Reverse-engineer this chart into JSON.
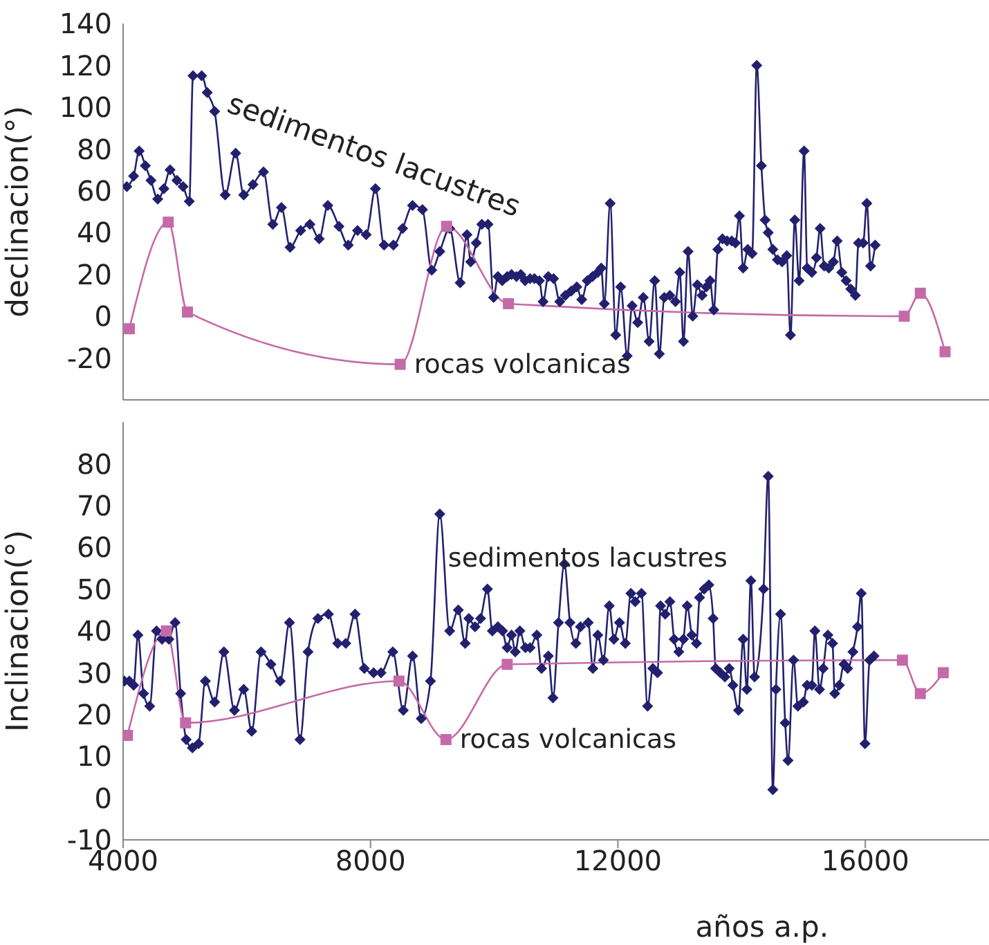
{
  "chart_data": [
    {
      "type": "line",
      "ylabel": "declinacion(°)",
      "xlim": [
        4000,
        18000
      ],
      "xticks": [
        4000,
        8000,
        12000,
        16000
      ],
      "ylim": [
        -40,
        140
      ],
      "yticks": [
        -20,
        0,
        20,
        40,
        60,
        80,
        100,
        120,
        140
      ],
      "tick_labels": "y",
      "series": [
        {
          "name": "sedimentos lacustres",
          "color": "#22206e",
          "marker": "diamond",
          "x": [
            4060,
            4170,
            4260,
            4360,
            4450,
            4560,
            4660,
            4760,
            4870,
            4970,
            5070,
            5130,
            5270,
            5360,
            5480,
            5650,
            5820,
            5950,
            6100,
            6270,
            6420,
            6560,
            6700,
            6870,
            7020,
            7170,
            7310,
            7490,
            7640,
            7790,
            7930,
            8080,
            8220,
            8370,
            8520,
            8680,
            8840,
            8990,
            9120,
            9280,
            9450,
            9560,
            9620,
            9710,
            9800,
            9900,
            9990,
            10060,
            10130,
            10210,
            10280,
            10360,
            10430,
            10500,
            10580,
            10650,
            10730,
            10790,
            10875,
            10960,
            11060,
            11150,
            11245,
            11335,
            11415,
            11505,
            11590,
            11675,
            11730,
            11780,
            11875,
            11965,
            12045,
            12150,
            12230,
            12320,
            12410,
            12505,
            12595,
            12670,
            12750,
            12840,
            12930,
            13000,
            13060,
            13135,
            13210,
            13285,
            13360,
            13430,
            13490,
            13550,
            13615,
            13690,
            13765,
            13840,
            13900,
            13965,
            14025,
            14100,
            14170,
            14245,
            14320,
            14380,
            14430,
            14505,
            14580,
            14655,
            14730,
            14790,
            14860,
            14930,
            15010,
            15060,
            15135,
            15210,
            15270,
            15335,
            15410,
            15485,
            15545,
            15620,
            15690,
            15765,
            15840,
            15890,
            15965,
            16025,
            16085,
            16160
          ],
          "values": [
            62,
            67,
            79,
            72,
            65,
            56,
            61,
            70,
            65,
            62,
            55,
            115,
            115,
            107,
            98,
            58,
            78,
            58,
            63,
            69,
            44,
            52,
            33,
            41,
            44,
            37,
            53,
            43,
            34,
            41,
            39,
            61,
            34,
            34,
            42,
            53,
            51,
            22,
            31,
            42,
            16,
            39,
            26,
            35,
            44,
            44,
            9,
            19,
            17,
            19,
            20,
            19,
            20,
            17,
            18,
            18,
            17,
            7,
            19,
            18,
            7,
            10,
            12,
            14,
            8,
            17,
            19,
            21,
            23,
            6,
            54,
            -9,
            14,
            -19,
            5,
            -3,
            9,
            -12,
            17,
            -18,
            9,
            10,
            7,
            21,
            -12,
            31,
            0,
            15,
            10,
            14,
            17,
            3,
            32,
            37,
            36,
            36,
            35,
            48,
            23,
            32,
            30,
            120,
            72,
            46,
            40,
            32,
            27,
            26,
            29,
            -9,
            46,
            17,
            79,
            23,
            21,
            28,
            42,
            24,
            23,
            26,
            36,
            21,
            17,
            13,
            10,
            35,
            35,
            54,
            24,
            34
          ]
        },
        {
          "name": "rocas volcanicas",
          "color": "#c56aa8",
          "marker": "square",
          "x": [
            4100,
            4730,
            5040,
            8480,
            9230,
            10230,
            16630,
            16890,
            17290
          ],
          "values": [
            -6,
            45,
            2,
            -23,
            43,
            6,
            0,
            11,
            -17
          ]
        }
      ]
    },
    {
      "type": "line",
      "ylabel": "Inclinacion(°)",
      "xlabel": "años a.p.",
      "xlim": [
        4000,
        18000
      ],
      "xticks": [
        4000,
        8000,
        12000,
        16000
      ],
      "ylim": [
        -10,
        90
      ],
      "yticks": [
        -10,
        0,
        10,
        20,
        30,
        40,
        50,
        60,
        70,
        80
      ],
      "series": [
        {
          "name": "sedimentos lacustres",
          "color": "#22206e",
          "marker": "diamond",
          "x": [
            4020,
            4100,
            4170,
            4240,
            4330,
            4430,
            4540,
            4630,
            4740,
            4840,
            4930,
            5020,
            5120,
            5220,
            5330,
            5480,
            5630,
            5800,
            5950,
            6080,
            6230,
            6390,
            6540,
            6690,
            6860,
            6990,
            7150,
            7320,
            7470,
            7600,
            7750,
            7900,
            8050,
            8170,
            8360,
            8530,
            8680,
            8820,
            8970,
            9120,
            9280,
            9420,
            9530,
            9590,
            9690,
            9780,
            9890,
            9970,
            10060,
            10135,
            10210,
            10280,
            10340,
            10415,
            10505,
            10580,
            10690,
            10765,
            10875,
            10950,
            11040,
            11135,
            11225,
            11320,
            11395,
            11520,
            11595,
            11675,
            11765,
            11860,
            11935,
            12025,
            12120,
            12210,
            12280,
            12380,
            12480,
            12565,
            12640,
            12690,
            12765,
            12840,
            12910,
            12985,
            13060,
            13120,
            13195,
            13270,
            13320,
            13395,
            13470,
            13540,
            13580,
            13655,
            13730,
            13800,
            13860,
            13950,
            14025,
            14085,
            14150,
            14210,
            14355,
            14430,
            14505,
            14555,
            14630,
            14705,
            14750,
            14840,
            14910,
            15000,
            15060,
            15135,
            15185,
            15260,
            15320,
            15395,
            15470,
            15505,
            15580,
            15655,
            15715,
            15800,
            15875,
            15935,
            15995,
            16070,
            16140
          ],
          "values": [
            28,
            28,
            27,
            39,
            25,
            22,
            40,
            38,
            38,
            42,
            25,
            14,
            12,
            13,
            28,
            23,
            35,
            21,
            26,
            16,
            35,
            32,
            28,
            42,
            14,
            35,
            43,
            44,
            37,
            37,
            44,
            31,
            30,
            30,
            35,
            21,
            34,
            19,
            28,
            68,
            40,
            45,
            37,
            43,
            41,
            43,
            50,
            40,
            41,
            40,
            36,
            39,
            35,
            40,
            36,
            36,
            39,
            31,
            34,
            24,
            42,
            56,
            42,
            37,
            41,
            42,
            31,
            39,
            33,
            46,
            38,
            42,
            37,
            49,
            47,
            49,
            22,
            31,
            30,
            46,
            44,
            47,
            38,
            35,
            38,
            46,
            39,
            37,
            48,
            50,
            51,
            43,
            31,
            30,
            29,
            31,
            27,
            21,
            38,
            26,
            52,
            29,
            50,
            77,
            2,
            26,
            44,
            18,
            9,
            33,
            22,
            23,
            27,
            27,
            40,
            26,
            31,
            39,
            37,
            25,
            27,
            32,
            31,
            35,
            41,
            49,
            13,
            33,
            34
          ]
        },
        {
          "name": "rocas volcanicas",
          "color": "#c56aa8",
          "marker": "square",
          "x": [
            4070,
            4700,
            5010,
            8460,
            9220,
            10210,
            16600,
            16890,
            17260
          ],
          "values": [
            15,
            40,
            18,
            28,
            14,
            32,
            33,
            25,
            30
          ]
        }
      ]
    }
  ]
}
